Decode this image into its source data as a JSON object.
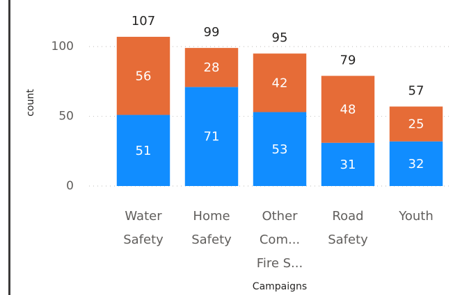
{
  "chart_data": {
    "type": "stacked_bar",
    "categories": [
      [
        "Water",
        "Safety"
      ],
      [
        "Home",
        "Safety"
      ],
      [
        "Other",
        "Com...",
        "Fire S..."
      ],
      [
        "Road",
        "Safety"
      ],
      [
        "Youth"
      ]
    ],
    "series": [
      {
        "color": "#118dff",
        "values": [
          51,
          71,
          53,
          31,
          32
        ]
      },
      {
        "color": "#e66c37",
        "values": [
          56,
          28,
          42,
          48,
          25
        ]
      }
    ],
    "totals": [
      107,
      99,
      95,
      79,
      57
    ],
    "y_label": "count",
    "x_label": "Campaigns",
    "ylim": [
      0,
      110
    ],
    "yticks": [
      0,
      50,
      100
    ],
    "grid": true
  }
}
